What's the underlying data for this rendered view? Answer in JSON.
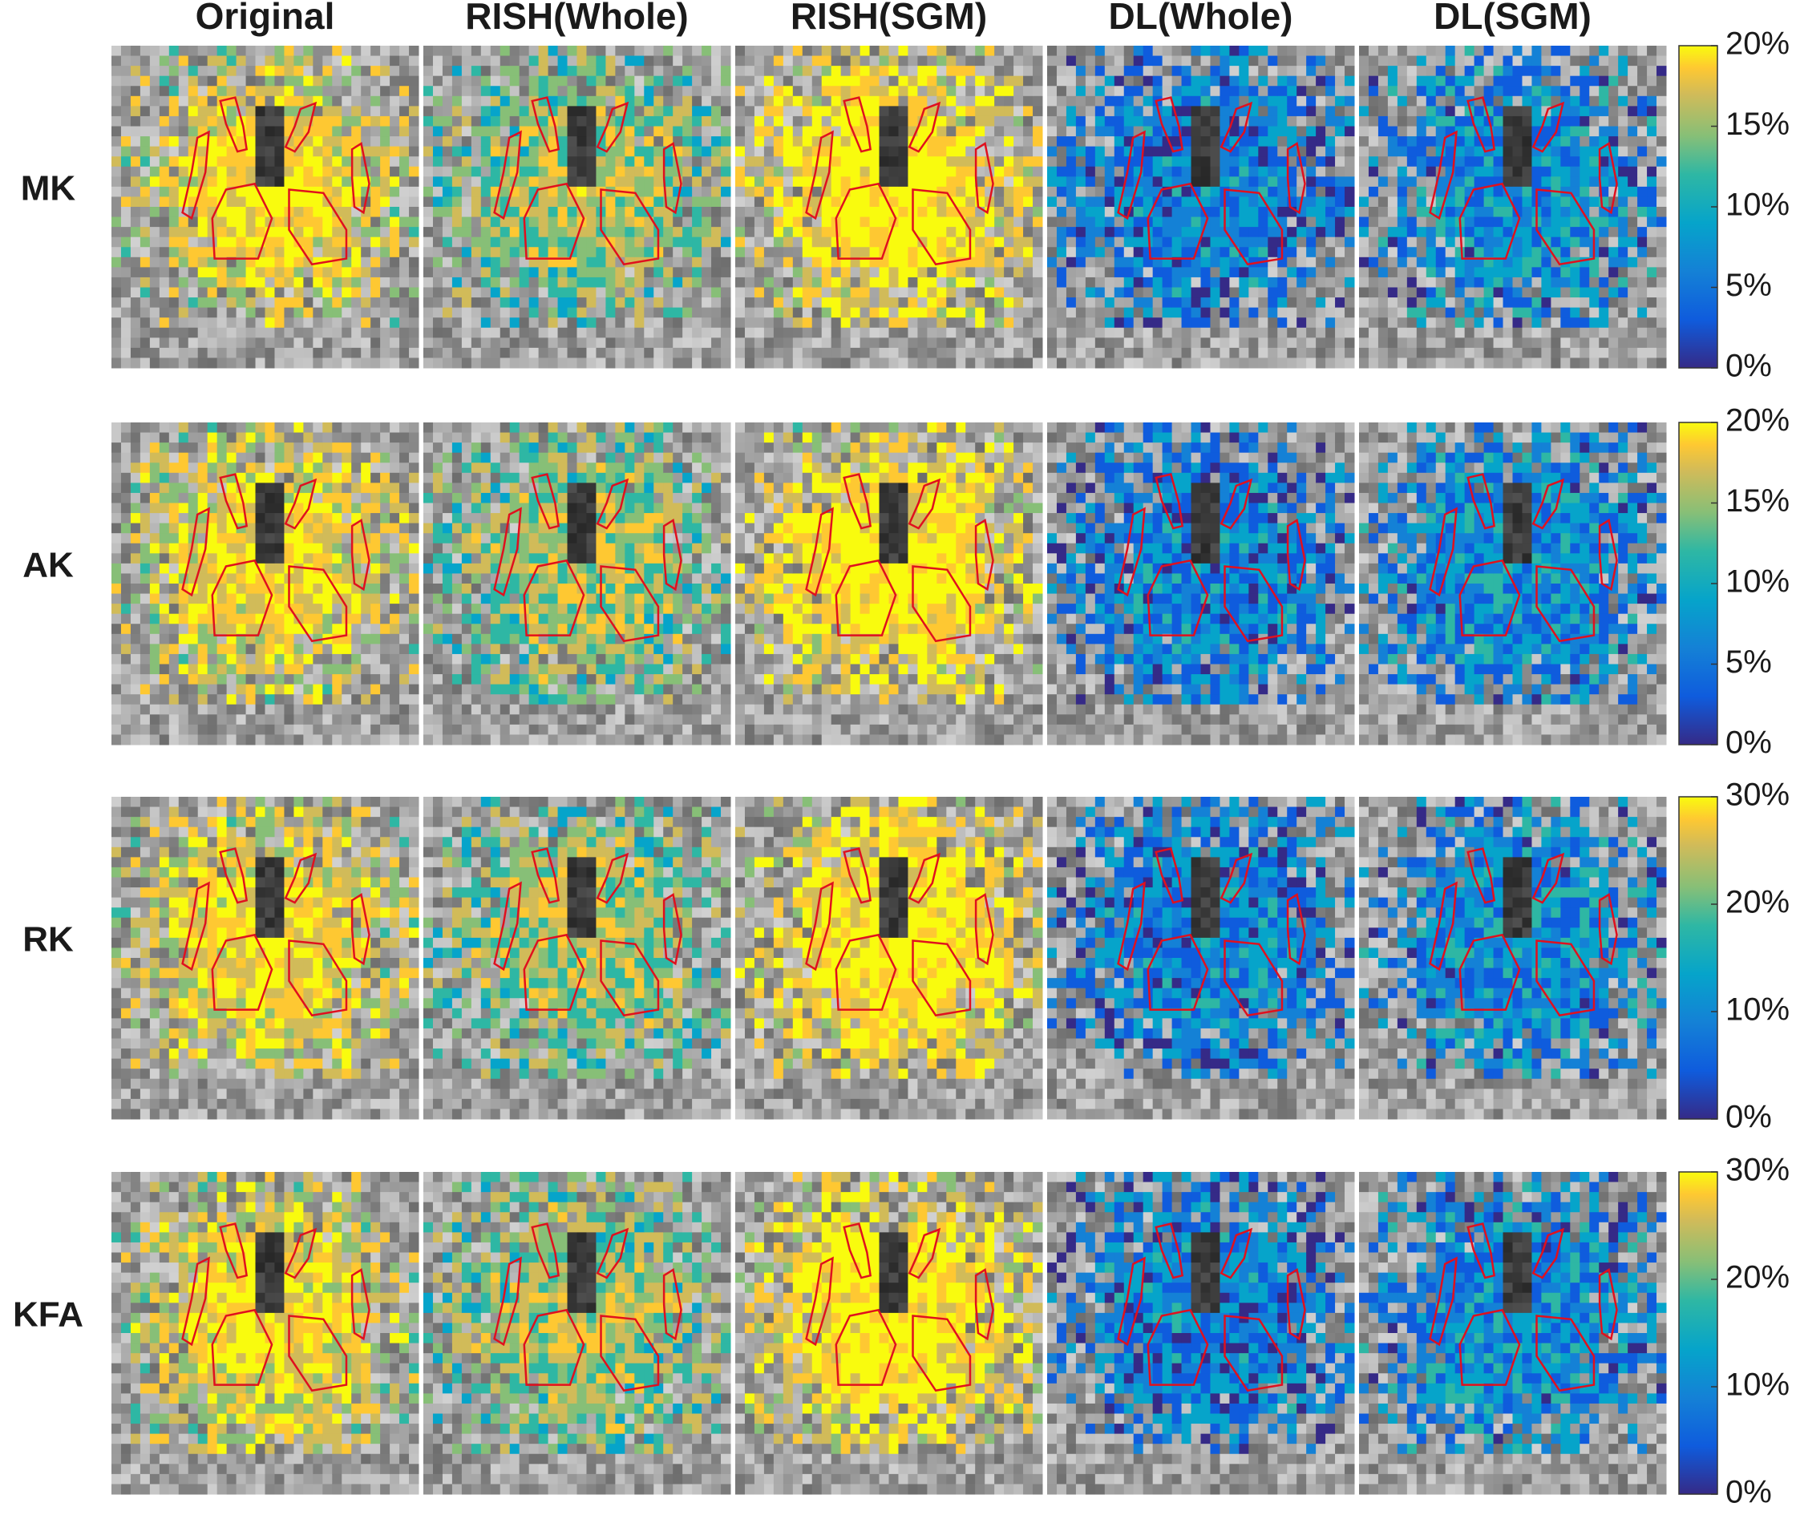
{
  "columns": [
    "Original",
    "RISH(Whole)",
    "RISH(SGM)",
    "DL(Whole)",
    "DL(SGM)"
  ],
  "rows": [
    {
      "label": "MK",
      "colorbar": {
        "lim": [
          0,
          20
        ],
        "ticks": [
          {
            "value": 0,
            "label": "0%"
          },
          {
            "value": 5,
            "label": "5%"
          },
          {
            "value": 10,
            "label": "10%"
          },
          {
            "value": 15,
            "label": "15%"
          },
          {
            "value": 20,
            "label": "20%"
          }
        ]
      }
    },
    {
      "label": "AK",
      "colorbar": {
        "lim": [
          0,
          20
        ],
        "ticks": [
          {
            "value": 0,
            "label": "0%"
          },
          {
            "value": 5,
            "label": "5%"
          },
          {
            "value": 10,
            "label": "10%"
          },
          {
            "value": 15,
            "label": "15%"
          },
          {
            "value": 20,
            "label": "20%"
          }
        ]
      }
    },
    {
      "label": "RK",
      "colorbar": {
        "lim": [
          0,
          30
        ],
        "ticks": [
          {
            "value": 0,
            "label": "0%"
          },
          {
            "value": 10,
            "label": "10%"
          },
          {
            "value": 20,
            "label": "20%"
          },
          {
            "value": 30,
            "label": "30%"
          }
        ]
      }
    },
    {
      "label": "KFA",
      "colorbar": {
        "lim": [
          0,
          30
        ],
        "ticks": [
          {
            "value": 0,
            "label": "0%"
          },
          {
            "value": 10,
            "label": "10%"
          },
          {
            "value": 20,
            "label": "20%"
          },
          {
            "value": 30,
            "label": "30%"
          }
        ]
      }
    }
  ]
}
